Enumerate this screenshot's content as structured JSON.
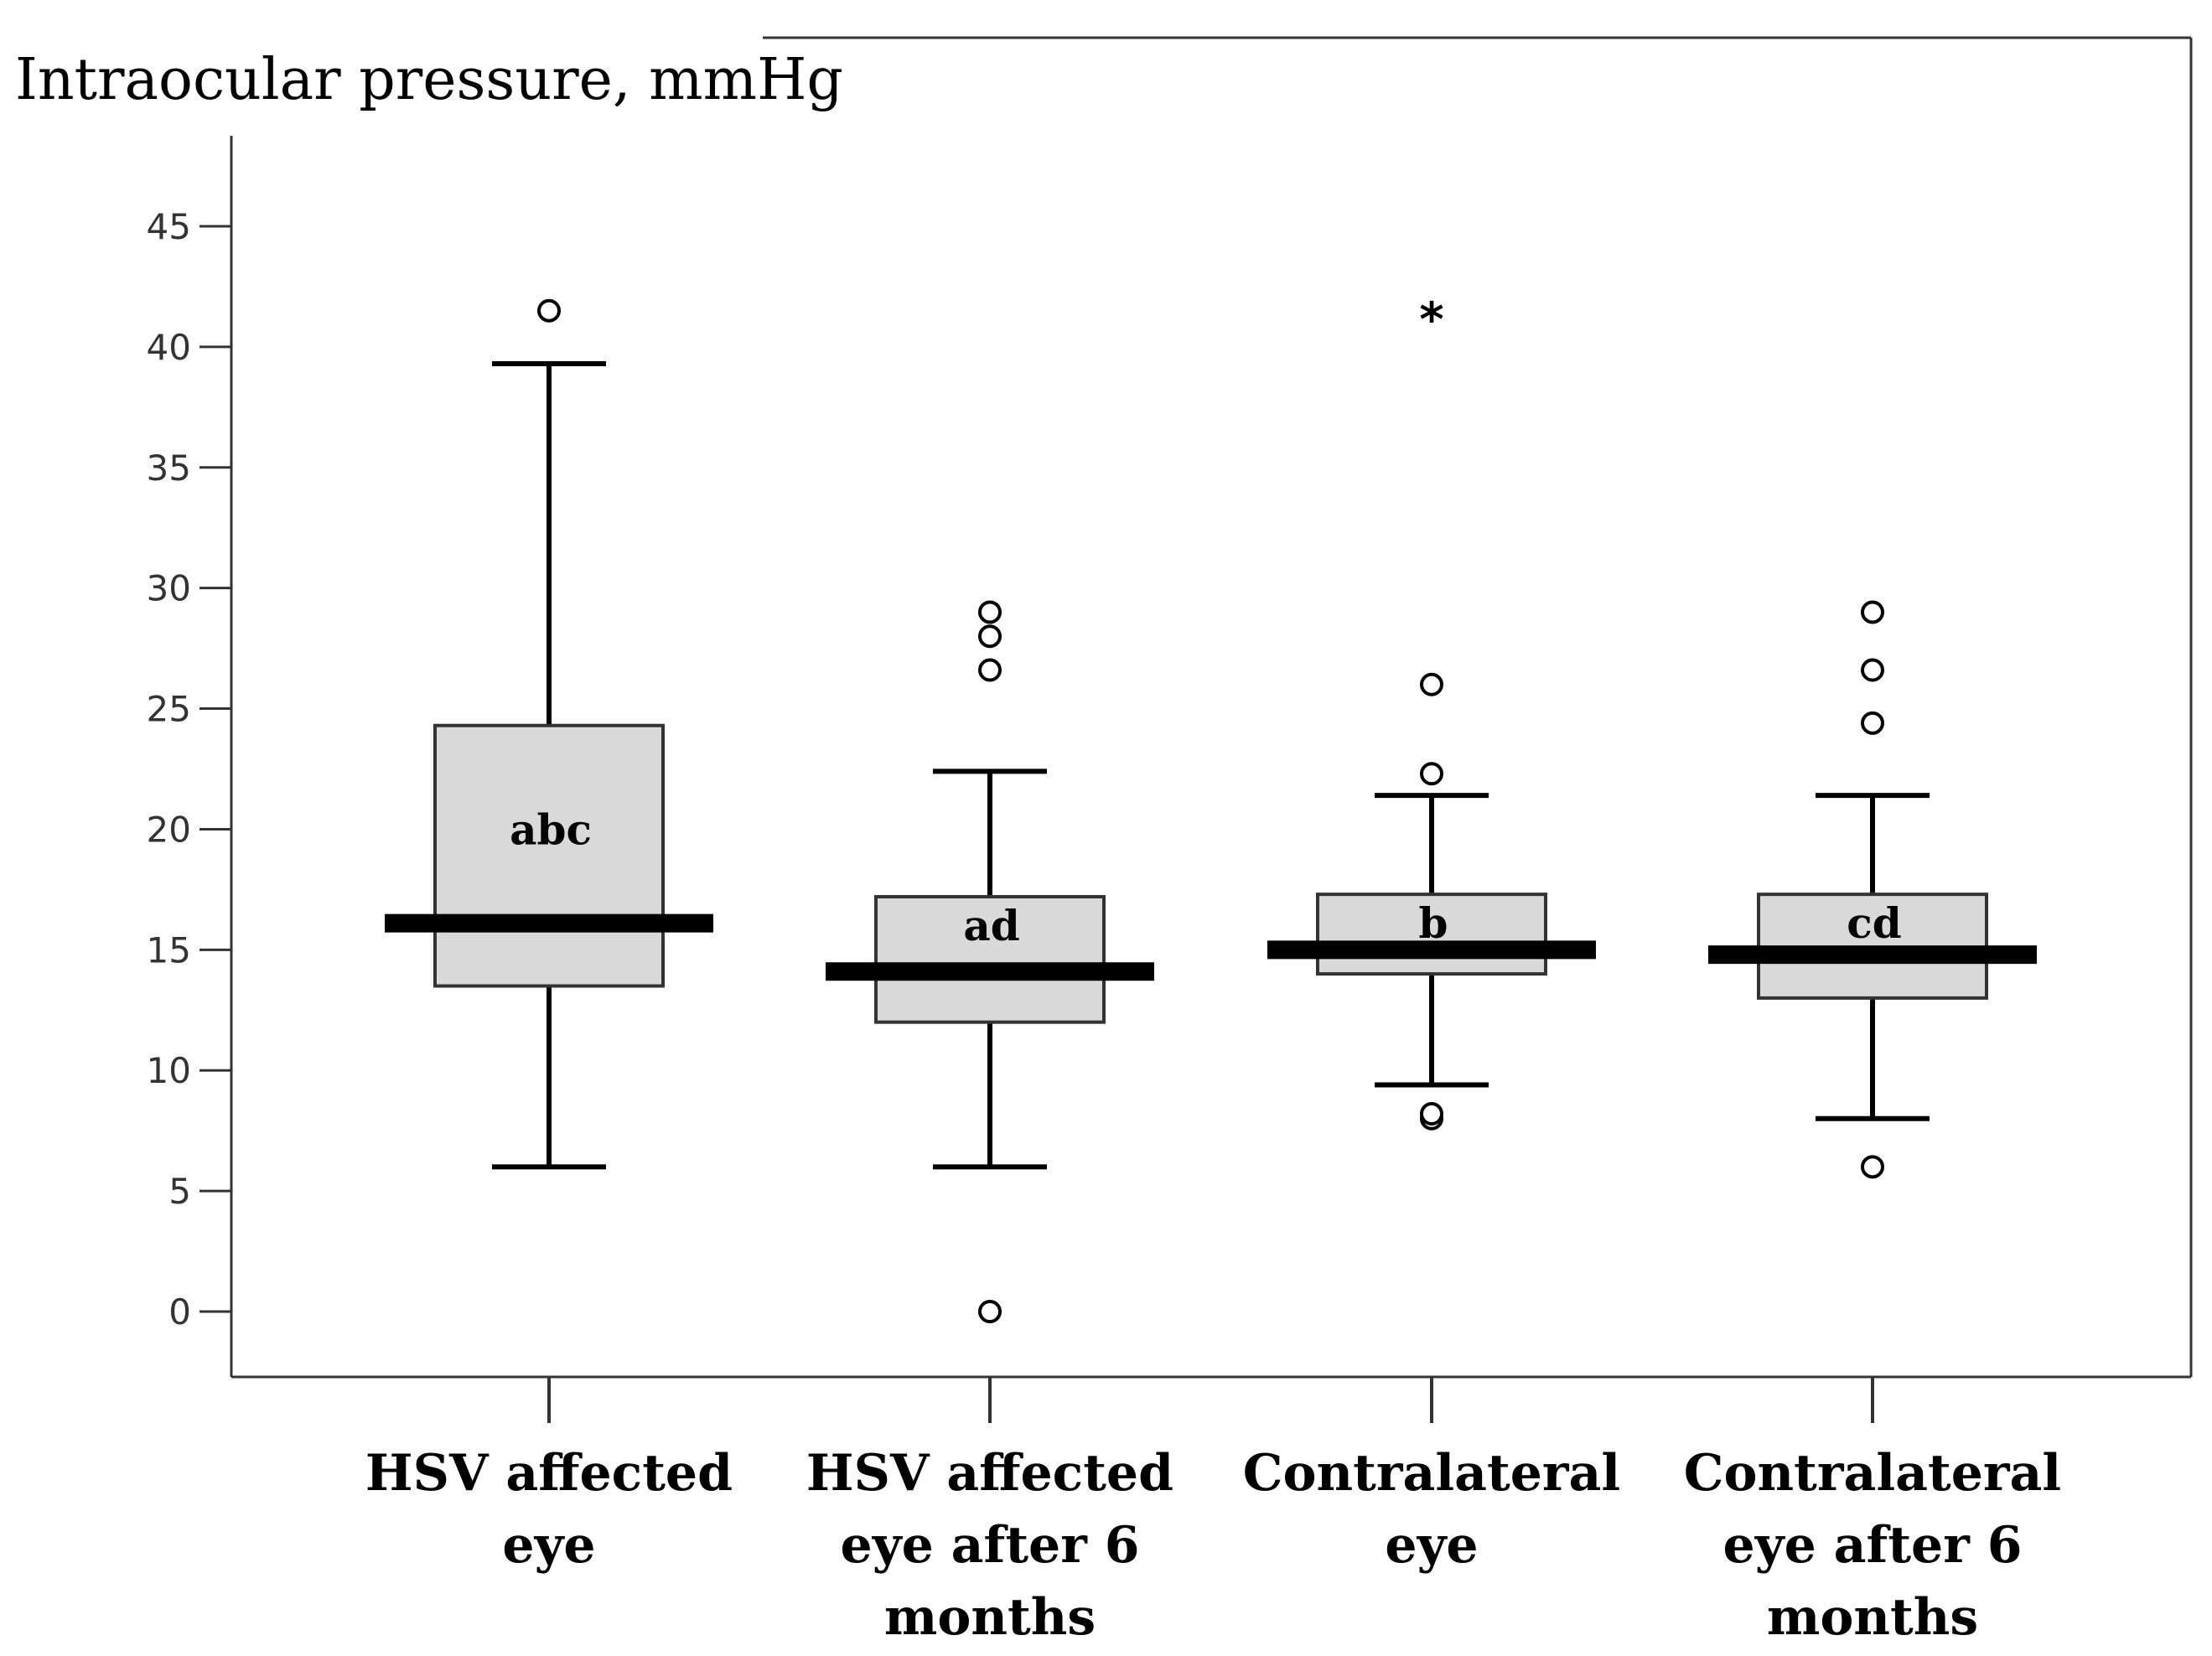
{
  "chart_data": {
    "type": "boxplot",
    "ylabel": "Intraocular pressure, mmHg",
    "xlabel": "",
    "ylim": [
      -3,
      48
    ],
    "yticks": [
      0,
      5,
      10,
      15,
      20,
      25,
      30,
      35,
      40,
      45
    ],
    "grid": false,
    "categories": [
      {
        "label_lines": [
          "HSV affected",
          "eye"
        ]
      },
      {
        "label_lines": [
          "HSV affected",
          "eye after 6",
          "months"
        ]
      },
      {
        "label_lines": [
          "Contralateral",
          "eye"
        ]
      },
      {
        "label_lines": [
          "Contralateral",
          "eye after 6",
          "months"
        ]
      }
    ],
    "boxes": [
      {
        "category": "HSV affected eye",
        "whisker_low": 6,
        "q1": 13.5,
        "median": 16.1,
        "q3": 24.3,
        "whisker_high": 39.3,
        "outliers": [
          41.5
        ],
        "extremes": [],
        "letters": "abc"
      },
      {
        "category": "HSV affected eye after 6 months",
        "whisker_low": 6,
        "q1": 12,
        "median": 14.1,
        "q3": 17.2,
        "whisker_high": 22.4,
        "outliers": [
          0,
          26.6,
          28,
          29
        ],
        "extremes": [],
        "letters": "ad"
      },
      {
        "category": "Contralateral eye",
        "whisker_low": 9.4,
        "q1": 14,
        "median": 15,
        "q3": 17.3,
        "whisker_high": 21.4,
        "outliers": [
          8,
          8.2,
          22.3,
          26
        ],
        "extremes": [
          41.5
        ],
        "letters": "b"
      },
      {
        "category": "Contralateral eye after 6 months",
        "whisker_low": 8,
        "q1": 13,
        "median": 14.8,
        "q3": 17.3,
        "whisker_high": 21.4,
        "outliers": [
          6,
          24.4,
          26.6,
          29
        ],
        "extremes": [],
        "letters": "cd"
      }
    ]
  }
}
